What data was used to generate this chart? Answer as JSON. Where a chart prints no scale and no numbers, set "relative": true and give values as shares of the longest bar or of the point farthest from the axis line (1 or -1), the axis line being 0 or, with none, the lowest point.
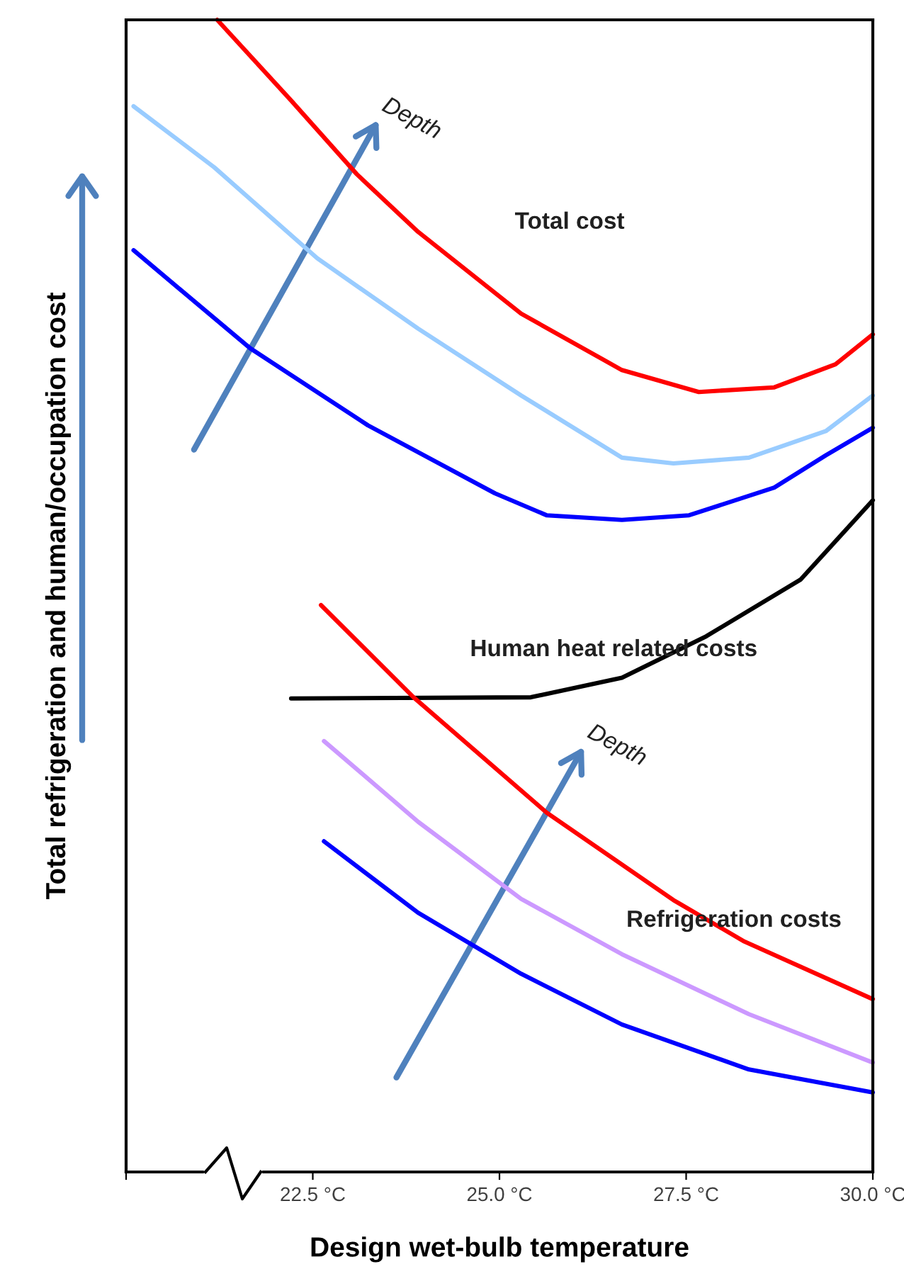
{
  "chart_data": {
    "type": "line",
    "relative": true,
    "xlabel": "Design wet-bulb temperature",
    "ylabel": "Total refrigeration and human/occupation cost",
    "xlim": [
      20,
      30
    ],
    "xticks": [
      {
        "value": 20,
        "label": null
      },
      {
        "value": 22.5,
        "label": "22.5 °C"
      },
      {
        "value": 25,
        "label": "25.0 °C"
      },
      {
        "value": 27.5,
        "label": "27.5 °C"
      },
      {
        "value": 30,
        "label": "30.0 °C"
      }
    ],
    "grid": false,
    "legend": false,
    "marker": "none",
    "line_style": "solid",
    "series": [
      {
        "color": "#ff0000",
        "x": [
          21.22,
          22.21,
          23.09,
          23.91,
          25.29,
          26.64,
          27.67,
          28.68,
          29.5,
          30.0
        ],
        "values": [
          1.0,
          0.93,
          0.866,
          0.816,
          0.745,
          0.696,
          0.677,
          0.681,
          0.701,
          0.727
        ]
      },
      {
        "color": "#99ccff",
        "x": [
          20.1,
          21.18,
          22.56,
          23.91,
          25.29,
          26.64,
          27.33,
          28.34,
          29.37,
          30.0
        ],
        "values": [
          0.925,
          0.872,
          0.793,
          0.732,
          0.674,
          0.62,
          0.615,
          0.62,
          0.643,
          0.674
        ]
      },
      {
        "color": "#0000ff",
        "x": [
          20.1,
          21.66,
          23.24,
          24.94,
          25.63,
          26.64,
          27.54,
          28.68,
          29.37,
          30.0
        ],
        "values": [
          0.8,
          0.715,
          0.648,
          0.589,
          0.57,
          0.566,
          0.57,
          0.594,
          0.622,
          0.646
        ]
      },
      {
        "color": "#000000",
        "x": [
          22.21,
          25.42,
          26.64,
          27.77,
          29.03,
          30.0
        ],
        "values": [
          0.411,
          0.412,
          0.429,
          0.465,
          0.514,
          0.583
        ]
      },
      {
        "color": "#ff0000",
        "x": [
          22.61,
          23.85,
          25.63,
          27.33,
          28.28,
          30.0
        ],
        "values": [
          0.492,
          0.412,
          0.312,
          0.236,
          0.2,
          0.15
        ]
      },
      {
        "color": "#cc99ff",
        "x": [
          22.65,
          23.91,
          25.29,
          26.64,
          28.34,
          30.0
        ],
        "values": [
          0.374,
          0.304,
          0.237,
          0.189,
          0.137,
          0.095
        ]
      },
      {
        "color": "#0000ff",
        "x": [
          22.65,
          23.91,
          25.29,
          26.64,
          28.34,
          30.0
        ],
        "values": [
          0.287,
          0.225,
          0.172,
          0.128,
          0.089,
          0.069
        ]
      }
    ],
    "annotations": [
      "Total cost",
      "Human heat related costs",
      "Refrigeration costs",
      "Depth",
      "Depth"
    ]
  }
}
